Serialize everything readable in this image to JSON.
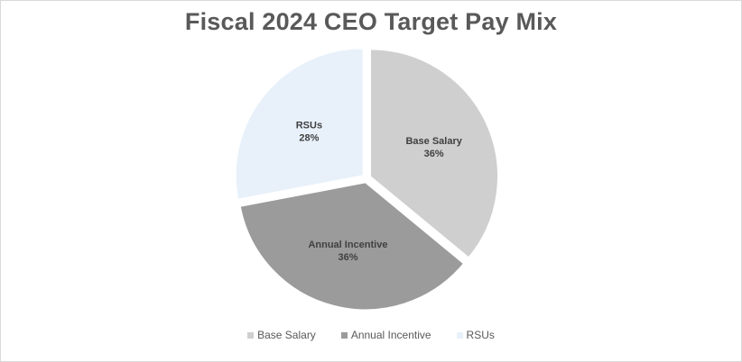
{
  "chart_data": {
    "type": "pie",
    "title": "Fiscal 2024 CEO Target Pay Mix",
    "slices": [
      {
        "label": "Base Salary",
        "value": 36,
        "value_label": "36%",
        "color": "#cfcfcf"
      },
      {
        "label": "Annual Incentive",
        "value": 36,
        "value_label": "36%",
        "color": "#9b9b9b"
      },
      {
        "label": "RSUs",
        "value": 28,
        "value_label": "28%",
        "color": "#e8f1fa"
      }
    ],
    "legend_position": "bottom",
    "exploded": true
  }
}
